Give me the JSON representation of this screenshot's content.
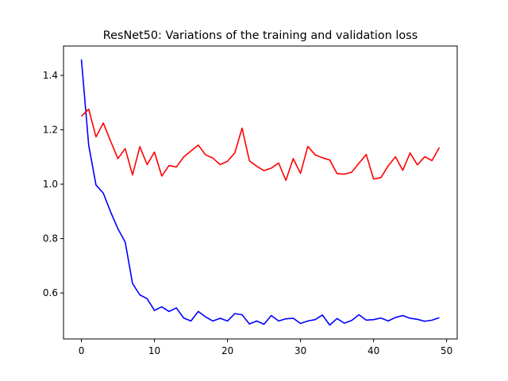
{
  "chart_data": {
    "type": "line",
    "title": "ResNet50: Variations of the training and validation loss",
    "xlabel": "",
    "ylabel": "",
    "xlim": [
      -2.45,
      51.45
    ],
    "ylim": [
      0.431,
      1.508
    ],
    "xticks": [
      0,
      10,
      20,
      30,
      40,
      50
    ],
    "yticks": [
      0.6,
      0.8,
      1.0,
      1.2,
      1.4
    ],
    "ytick_labels": [
      "0.6",
      "0.8",
      "1.0",
      "1.2",
      "1.4"
    ],
    "grid": false,
    "legend": "none",
    "x": [
      0,
      1,
      2,
      3,
      4,
      5,
      6,
      7,
      8,
      9,
      10,
      11,
      12,
      13,
      14,
      15,
      16,
      17,
      18,
      19,
      20,
      21,
      22,
      23,
      24,
      25,
      26,
      27,
      28,
      29,
      30,
      31,
      32,
      33,
      34,
      35,
      36,
      37,
      38,
      39,
      40,
      41,
      42,
      43,
      44,
      45,
      46,
      47,
      48,
      49
    ],
    "series": [
      {
        "color": "#0000ff",
        "values": [
          1.459,
          1.143,
          0.997,
          0.967,
          0.898,
          0.836,
          0.787,
          0.635,
          0.593,
          0.579,
          0.536,
          0.549,
          0.532,
          0.545,
          0.508,
          0.497,
          0.532,
          0.512,
          0.497,
          0.507,
          0.497,
          0.524,
          0.52,
          0.486,
          0.497,
          0.485,
          0.517,
          0.497,
          0.505,
          0.507,
          0.488,
          0.497,
          0.502,
          0.519,
          0.482,
          0.506,
          0.489,
          0.499,
          0.52,
          0.5,
          0.502,
          0.508,
          0.497,
          0.51,
          0.517,
          0.507,
          0.503,
          0.496,
          0.5,
          0.509
        ]
      },
      {
        "color": "#ff0000",
        "values": [
          1.25,
          1.276,
          1.174,
          1.225,
          1.158,
          1.094,
          1.131,
          1.034,
          1.138,
          1.072,
          1.118,
          1.03,
          1.069,
          1.063,
          1.1,
          1.122,
          1.144,
          1.108,
          1.096,
          1.072,
          1.084,
          1.115,
          1.206,
          1.086,
          1.066,
          1.05,
          1.059,
          1.078,
          1.014,
          1.094,
          1.04,
          1.139,
          1.108,
          1.097,
          1.089,
          1.039,
          1.037,
          1.044,
          1.077,
          1.109,
          1.019,
          1.024,
          1.067,
          1.101,
          1.051,
          1.115,
          1.071,
          1.101,
          1.087,
          1.135
        ]
      }
    ]
  }
}
